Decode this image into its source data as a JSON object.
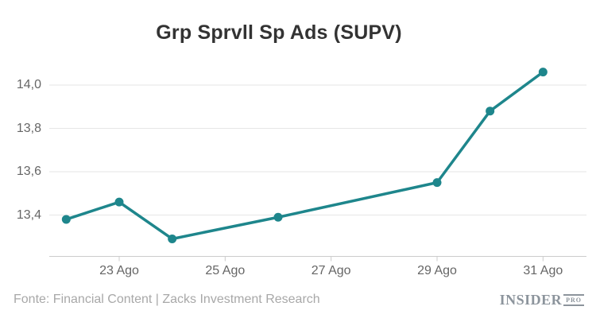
{
  "title": "Grp Sprvll Sp Ads (SUPV)",
  "footer": {
    "source": "Fonte: Financial Content | Zacks Investment Research",
    "logo": {
      "name": "INSIDER",
      "suffix": "PRO"
    }
  },
  "colors": {
    "line": "#1e868c",
    "title_text": "#333333",
    "axis_label_text": "#666666",
    "gridline": "#e6e6e6",
    "axis_line": "#cccccc",
    "footer_text": "#a8a8a8",
    "logo_text": "#8c949c",
    "background": "#ffffff"
  },
  "chart_data": {
    "type": "line",
    "title": "Grp Sprvll Sp Ads (SUPV)",
    "xlabel": "",
    "ylabel": "",
    "grid": true,
    "legend": false,
    "marker": "circle",
    "series": [
      {
        "name": "SUPV",
        "points": [
          {
            "x_label": "22 Ago",
            "day": 22,
            "value": 13.38
          },
          {
            "x_label": "23 Ago",
            "day": 23,
            "value": 13.46
          },
          {
            "x_label": "24 Ago",
            "day": 24,
            "value": 13.29
          },
          {
            "x_label": "26 Ago",
            "day": 26,
            "value": 13.39
          },
          {
            "x_label": "29 Ago",
            "day": 29,
            "value": 13.55
          },
          {
            "x_label": "30 Ago",
            "day": 30,
            "value": 13.88
          },
          {
            "x_label": "31 Ago",
            "day": 31,
            "value": 14.06
          }
        ]
      }
    ],
    "x_axis": {
      "tick_labels": [
        "23 Ago",
        "25 Ago",
        "27 Ago",
        "29 Ago",
        "31 Ago"
      ],
      "ticks": [
        {
          "day": 23,
          "label": "23 Ago"
        },
        {
          "day": 25,
          "label": "25 Ago"
        },
        {
          "day": 27,
          "label": "27 Ago"
        },
        {
          "day": 29,
          "label": "29 Ago"
        },
        {
          "day": 31,
          "label": "31 Ago"
        }
      ],
      "range_days": [
        21.7,
        31.8
      ]
    },
    "y_axis": {
      "tick_labels": [
        "13,4",
        "13,6",
        "13,8",
        "14,0"
      ],
      "ticks": [
        {
          "value": 13.4,
          "label": "13,4"
        },
        {
          "value": 13.6,
          "label": "13,6"
        },
        {
          "value": 13.8,
          "label": "13,8"
        },
        {
          "value": 14.0,
          "label": "14,0"
        }
      ],
      "range": [
        13.21,
        14.13
      ]
    }
  }
}
